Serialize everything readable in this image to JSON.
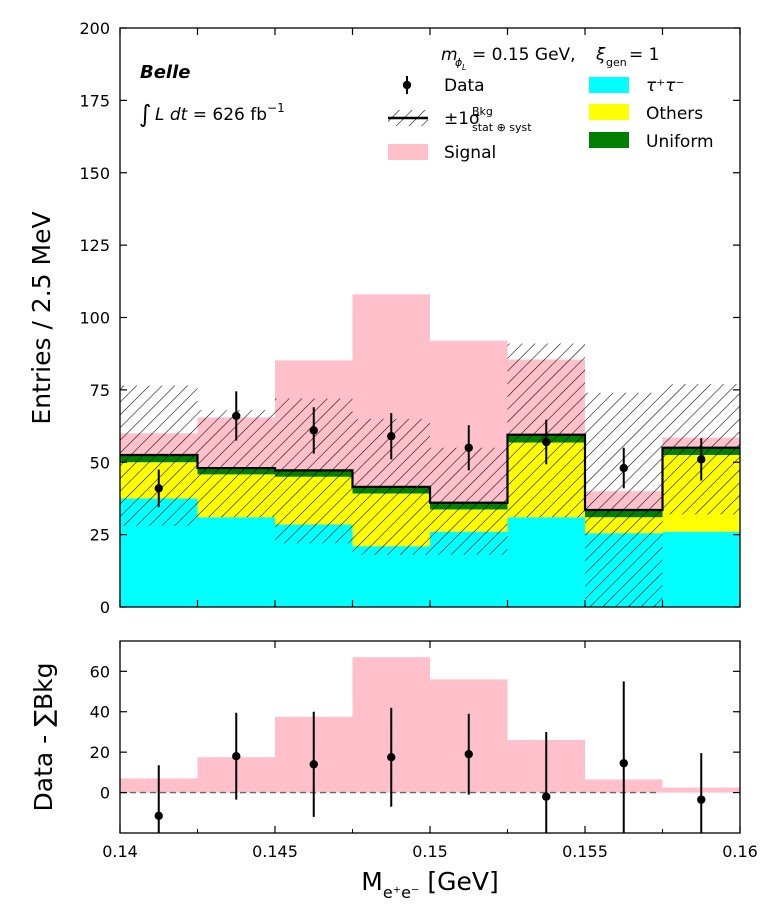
{
  "chart_data": [
    {
      "type": "histogram",
      "panel": "main",
      "ylabel": "Entries / 2.5 MeV",
      "xlim": [
        0.14,
        0.16
      ],
      "ylim": [
        0,
        200
      ],
      "yticks": [
        0,
        25,
        50,
        75,
        100,
        125,
        150,
        175,
        200
      ],
      "bin_edges": [
        0.14,
        0.1425,
        0.145,
        0.1475,
        0.15,
        0.1525,
        0.155,
        0.1575,
        0.16
      ],
      "stack_order": [
        "tau",
        "others",
        "uniform",
        "signal"
      ],
      "series": [
        {
          "key": "tau",
          "name": "τ⁺τ⁻",
          "color": "#00ffff",
          "values": [
            37.5,
            31,
            28.5,
            21,
            26,
            31,
            25.5,
            26
          ]
        },
        {
          "key": "others",
          "name": "Others",
          "color": "#ffff00",
          "values": [
            12.5,
            14.8,
            16.5,
            18.2,
            7.7,
            25.8,
            5.5,
            26.5
          ]
        },
        {
          "key": "uniform",
          "name": "Uniform",
          "color": "#008000",
          "values": [
            2.5,
            2.2,
            2.2,
            2.3,
            2.3,
            2.7,
            2.5,
            2.5
          ]
        },
        {
          "key": "signal",
          "name": "Signal",
          "color": "#ffc0cb",
          "values": [
            7.5,
            17.5,
            38,
            66.5,
            56,
            26,
            6.5,
            3.5
          ]
        }
      ],
      "bkg_band": {
        "name": "±1σ stat⊕syst (Bkg)",
        "low": [
          28,
          31,
          22,
          18,
          18,
          31,
          0,
          32
        ],
        "high": [
          76.5,
          68,
          72,
          65,
          55,
          91,
          74,
          77
        ]
      },
      "data_points": {
        "name": "Data",
        "x": [
          0.14125,
          0.14375,
          0.14625,
          0.14875,
          0.15125,
          0.15375,
          0.15625,
          0.15875
        ],
        "y": [
          41,
          66,
          61,
          59,
          55,
          57,
          48,
          51
        ],
        "err": [
          6.5,
          8.5,
          8,
          8,
          7.8,
          7.7,
          7,
          7.3
        ]
      },
      "annotations": {
        "experiment": "Belle",
        "lumi_prefix": "L dt  = ",
        "lumi_value": "626 fb",
        "lumi_exp": "−1",
        "param_mass": "= 0.15 GeV, ",
        "param_xi": "= 1"
      },
      "legend": {
        "data": "Data",
        "band_main": "±1σ",
        "band_sup": "Bkg",
        "band_sub": "stat ⊕ syst",
        "signal": "Signal",
        "tau": "τ⁺τ⁻",
        "others": "Others",
        "uniform": "Uniform"
      }
    },
    {
      "type": "bar",
      "panel": "ratio",
      "ylabel": "Data - ∑Bkg",
      "xlabel": "M",
      "xlabel_unit": " [GeV]",
      "xlabel_sub": "e⁺e⁻",
      "xlim": [
        0.14,
        0.16
      ],
      "ylim": [
        -20,
        75
      ],
      "yticks": [
        0,
        20,
        40,
        60
      ],
      "xticks": [
        0.14,
        0.145,
        0.15,
        0.155,
        0.16
      ],
      "xtick_labels": [
        "0.14",
        "0.145",
        "0.15",
        "0.155",
        "0.16"
      ],
      "signal_values": [
        7,
        17.5,
        37.5,
        67,
        56,
        26,
        6.5,
        2.5
      ],
      "residuals": {
        "y": [
          -11.5,
          18,
          14,
          17.5,
          19,
          -2,
          14.5,
          -3.5
        ],
        "err": [
          25,
          21.5,
          26,
          24.5,
          20,
          32,
          40.5,
          23
        ]
      }
    }
  ]
}
